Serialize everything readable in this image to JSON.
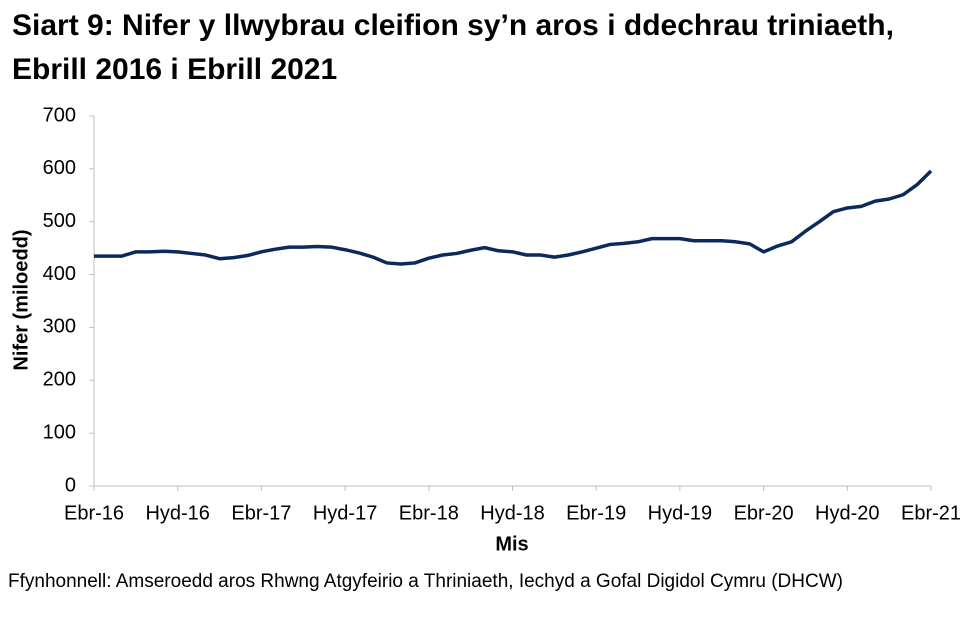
{
  "chart_data": {
    "type": "line",
    "title": "Siart 9: Nifer y llwybrau cleifion sy’n aros i ddechrau triniaeth, Ebrill 2016 i Ebrill 2021",
    "x_label": "Mis",
    "y_label": "Nifer (miloedd)",
    "source": "Ffynhonnell: Amseroedd aros Rhwng Atgyfeirio a Thriniaeth, Iechyd a Gofal Digidol Cymru (DHCW)",
    "categories": [
      "Ebr-16",
      null,
      null,
      null,
      null,
      null,
      "Hyd-16",
      null,
      null,
      null,
      null,
      null,
      "Ebr-17",
      null,
      null,
      null,
      null,
      null,
      "Hyd-17",
      null,
      null,
      null,
      null,
      null,
      "Ebr-18",
      null,
      null,
      null,
      null,
      null,
      "Hyd-18",
      null,
      null,
      null,
      null,
      null,
      "Ebr-19",
      null,
      null,
      null,
      null,
      null,
      "Hyd-19",
      null,
      null,
      null,
      null,
      null,
      "Ebr-20",
      null,
      null,
      null,
      null,
      null,
      "Hyd-20",
      null,
      null,
      null,
      null,
      null,
      "Ebr-21"
    ],
    "values": [
      435,
      435,
      435,
      443,
      443,
      444,
      443,
      440,
      437,
      430,
      432,
      436,
      443,
      448,
      452,
      452,
      453,
      452,
      447,
      441,
      433,
      422,
      420,
      422,
      431,
      437,
      440,
      446,
      451,
      445,
      443,
      437,
      437,
      433,
      437,
      443,
      450,
      457,
      459,
      462,
      468,
      468,
      468,
      464,
      464,
      464,
      462,
      458,
      443,
      454,
      462,
      482,
      500,
      519,
      526,
      529,
      539,
      543,
      551,
      570,
      596
    ],
    "color": "#0b2a5c",
    "ylim": [
      0,
      700
    ],
    "yticks": [
      0,
      100,
      200,
      300,
      400,
      500,
      600,
      700
    ],
    "grid": false
  }
}
